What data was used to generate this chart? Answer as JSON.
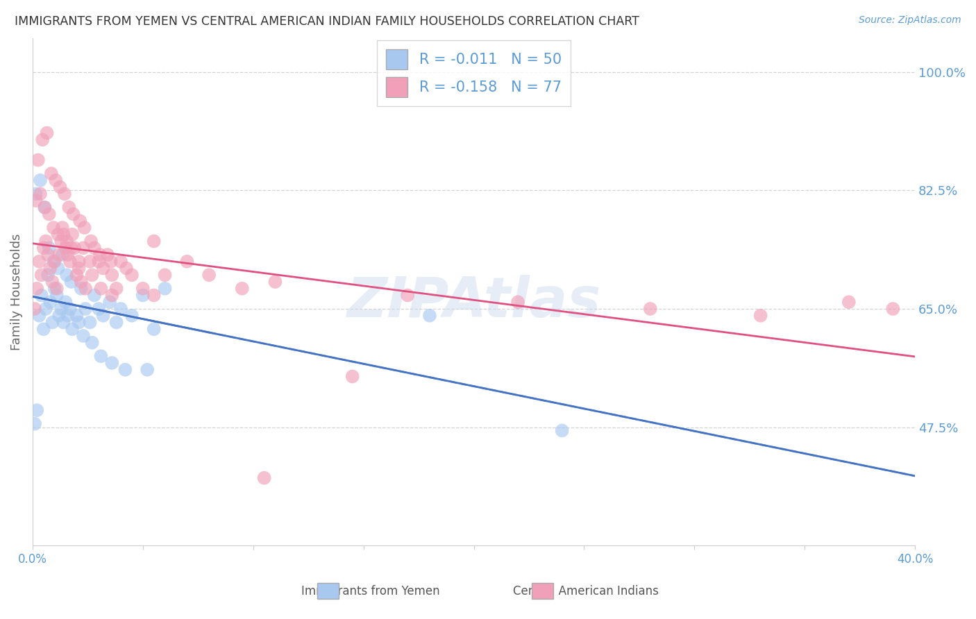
{
  "title": "IMMIGRANTS FROM YEMEN VS CENTRAL AMERICAN INDIAN FAMILY HOUSEHOLDS CORRELATION CHART",
  "source": "Source: ZipAtlas.com",
  "ylabel": "Family Households",
  "right_yticks": [
    47.5,
    65.0,
    82.5,
    100.0
  ],
  "right_ytick_labels": [
    "47.5%",
    "65.0%",
    "82.5%",
    "100.0%"
  ],
  "xmin": 0.0,
  "xmax": 40.0,
  "ymin": 30.0,
  "ymax": 105.0,
  "title_color": "#333333",
  "axis_color": "#5b9bd5",
  "grid_color": "#c8c8c8",
  "background_color": "#ffffff",
  "watermark": "ZIPAtlas",
  "series": [
    {
      "label": "Immigrants from Yemen",
      "R": -0.011,
      "N": 50,
      "color": "#a8c8f0",
      "line_color": "#4472c4",
      "line_style": "-",
      "x": [
        0.1,
        0.2,
        0.3,
        0.4,
        0.5,
        0.6,
        0.7,
        0.8,
        0.9,
        1.0,
        1.1,
        1.2,
        1.3,
        1.4,
        1.5,
        1.6,
        1.7,
        1.8,
        2.0,
        2.2,
        2.4,
        2.6,
        2.8,
        3.0,
        3.2,
        3.5,
        3.8,
        4.0,
        4.5,
        5.0,
        5.5,
        6.0,
        0.15,
        0.35,
        0.55,
        0.75,
        0.95,
        1.15,
        1.35,
        1.55,
        1.75,
        2.1,
        2.3,
        2.7,
        3.1,
        3.6,
        4.2,
        5.2,
        18.0,
        24.0
      ],
      "y": [
        48.0,
        50.0,
        64.0,
        67.0,
        62.0,
        65.0,
        70.0,
        66.0,
        63.0,
        68.0,
        67.0,
        64.0,
        65.0,
        63.0,
        66.0,
        64.0,
        65.0,
        62.0,
        64.0,
        68.0,
        65.0,
        63.0,
        67.0,
        65.0,
        64.0,
        66.0,
        63.0,
        65.0,
        64.0,
        67.0,
        62.0,
        68.0,
        82.0,
        84.0,
        80.0,
        74.0,
        72.0,
        71.0,
        73.0,
        70.0,
        69.0,
        63.0,
        61.0,
        60.0,
        58.0,
        57.0,
        56.0,
        56.0,
        64.0,
        47.0
      ]
    },
    {
      "label": "Central American Indians",
      "R": -0.158,
      "N": 77,
      "color": "#f0a0b8",
      "line_color": "#e05080",
      "line_style": "-",
      "x": [
        0.1,
        0.2,
        0.3,
        0.4,
        0.5,
        0.6,
        0.7,
        0.8,
        0.9,
        1.0,
        1.1,
        1.2,
        1.3,
        1.4,
        1.5,
        1.6,
        1.7,
        1.8,
        1.9,
        2.0,
        2.1,
        2.2,
        2.4,
        2.6,
        2.8,
        3.0,
        3.2,
        3.4,
        3.6,
        3.8,
        4.0,
        4.5,
        5.0,
        5.5,
        6.0,
        0.15,
        0.35,
        0.55,
        0.75,
        0.95,
        1.15,
        1.35,
        1.55,
        1.75,
        2.1,
        2.3,
        2.7,
        3.1,
        3.6,
        0.25,
        0.45,
        0.65,
        0.85,
        1.05,
        1.25,
        1.45,
        1.65,
        1.85,
        2.15,
        2.35,
        2.65,
        3.05,
        3.55,
        4.25,
        5.5,
        7.0,
        8.0,
        9.5,
        11.0,
        17.0,
        22.0,
        28.0,
        33.0,
        37.0,
        39.0,
        10.5,
        14.5
      ],
      "y": [
        65.0,
        68.0,
        72.0,
        70.0,
        74.0,
        75.0,
        73.0,
        71.0,
        69.0,
        72.0,
        68.0,
        73.0,
        75.0,
        76.0,
        74.0,
        73.0,
        72.0,
        76.0,
        74.0,
        70.0,
        71.0,
        69.0,
        68.0,
        72.0,
        74.0,
        72.0,
        71.0,
        73.0,
        70.0,
        68.0,
        72.0,
        70.0,
        68.0,
        67.0,
        70.0,
        81.0,
        82.0,
        80.0,
        79.0,
        77.0,
        76.0,
        77.0,
        75.0,
        74.0,
        72.0,
        74.0,
        70.0,
        68.0,
        67.0,
        87.0,
        90.0,
        91.0,
        85.0,
        84.0,
        83.0,
        82.0,
        80.0,
        79.0,
        78.0,
        77.0,
        75.0,
        73.0,
        72.0,
        71.0,
        75.0,
        72.0,
        70.0,
        68.0,
        69.0,
        67.0,
        66.0,
        65.0,
        64.0,
        66.0,
        65.0,
        40.0,
        55.0
      ]
    }
  ]
}
